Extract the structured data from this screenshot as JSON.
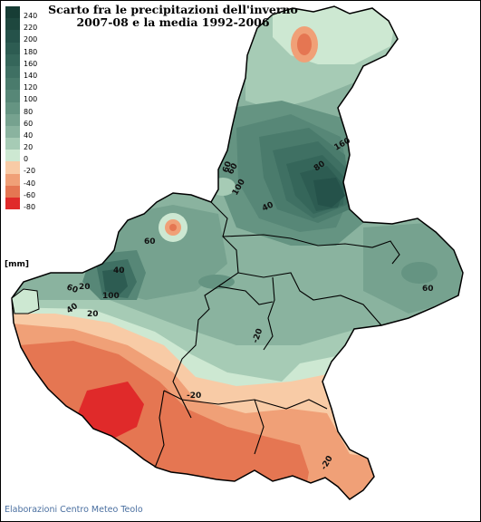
{
  "title_line1": "Scarto fra le precipitazioni dell'inverno",
  "title_line2": "2007-08 e la media 1992-2006",
  "unit": "[mm]",
  "credit": "Elaborazioni Centro Meteo Teolo",
  "legend": [
    {
      "label": "240",
      "color": "#173d35"
    },
    {
      "label": "220",
      "color": "#1e473e"
    },
    {
      "label": "200",
      "color": "#25524a"
    },
    {
      "label": "180",
      "color": "#2d5c52"
    },
    {
      "label": "160",
      "color": "#35665a"
    },
    {
      "label": "140",
      "color": "#3f7063"
    },
    {
      "label": "120",
      "color": "#4a7b6c"
    },
    {
      "label": "100",
      "color": "#578777"
    },
    {
      "label": "80",
      "color": "#659482"
    },
    {
      "label": "60",
      "color": "#76a28f"
    },
    {
      "label": "40",
      "color": "#8ab39f"
    },
    {
      "label": "20",
      "color": "#a6cbb5"
    },
    {
      "label": "0",
      "color": "#cde8d2"
    },
    {
      "label": "-20",
      "color": "#f8cba6"
    },
    {
      "label": "-40",
      "color": "#f0a077"
    },
    {
      "label": "-60",
      "color": "#e57652"
    },
    {
      "label": "-80",
      "color": "#e02a2a"
    }
  ],
  "contour_labels": [
    "60",
    "60",
    "40",
    "100",
    "20",
    "40",
    "60",
    "160",
    "80",
    "100",
    "60",
    "40",
    "60",
    "20",
    "-20",
    "-20",
    "-20"
  ]
}
